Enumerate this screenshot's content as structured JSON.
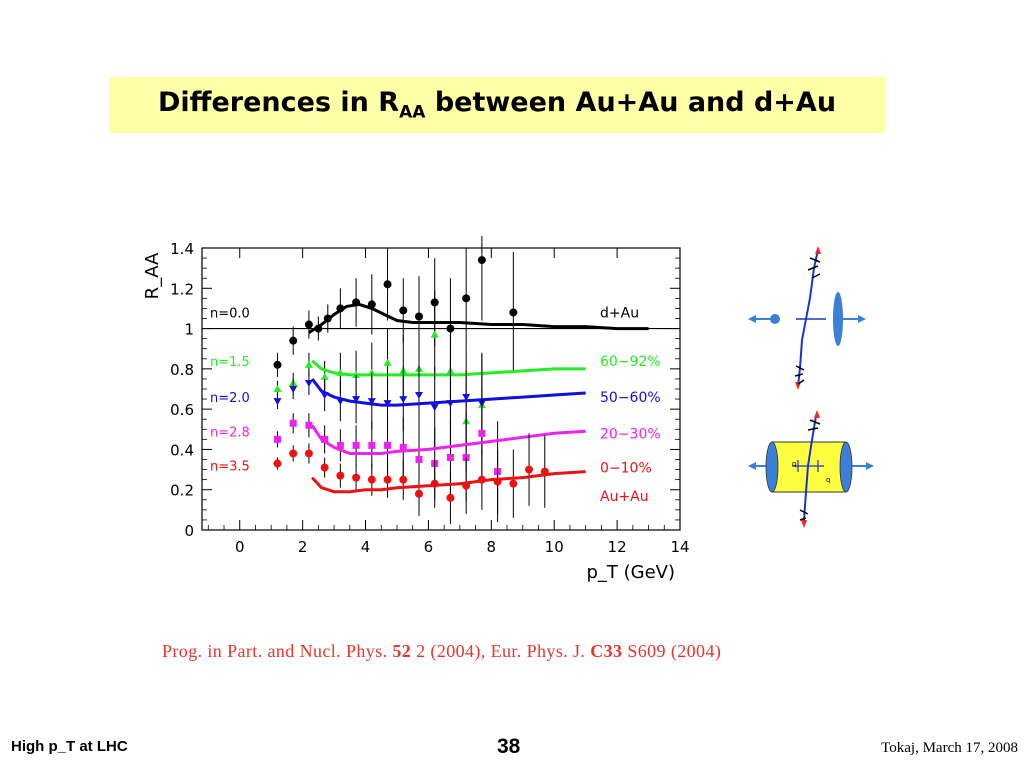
{
  "slide": {
    "title_main": "Differences in R",
    "title_sub": "AA",
    "title_rest": " between Au+Au and d+Au",
    "reference": {
      "part1": "Prog. in Part. and Nucl. Phys. ",
      "vol1": "52",
      "part2": " 2 (2004), Eur. Phys. J. ",
      "vol2": "C33",
      "part3": " S609 (2004)"
    },
    "footer_left": "High p_T at LHC",
    "page_number": "38",
    "footer_right": "Tokaj, March 17, 2008"
  },
  "colors": {
    "title_bg": "#ffffa8",
    "reference": "#e8342c",
    "dAu": "#000000",
    "c60_92": "#22ee22",
    "c50_60": "#1010e0",
    "c20_30": "#ee22ee",
    "c0_10": "#ee1111",
    "diagram_blue": "#3a7fd8",
    "diagram_yellow": "#ffff40"
  },
  "chart_data": {
    "type": "scatter",
    "xlabel": "p_T (GeV)",
    "ylabel": "R_AA",
    "xlim": [
      -1.2,
      14
    ],
    "ylim": [
      0,
      1.4
    ],
    "xticks": [
      0,
      2,
      4,
      6,
      8,
      10,
      12,
      14
    ],
    "yticks": [
      0,
      0.2,
      0.4,
      0.6,
      0.8,
      1,
      1.2,
      1.4
    ],
    "ytick_labels": [
      "0",
      "0.2",
      "0.4",
      "0.6",
      "0.8",
      "1",
      "1.2",
      "1.4"
    ],
    "reference_line": 1,
    "series": [
      {
        "name": "d+Au",
        "nlabel": "n=0.0",
        "color": "#000000",
        "marker": "circle",
        "x": [
          1.2,
          1.7,
          2.2,
          2.5,
          2.8,
          3.2,
          3.7,
          4.2,
          4.7,
          5.2,
          5.7,
          6.2,
          6.7,
          7.2,
          7.7,
          8.7
        ],
        "y": [
          0.82,
          0.94,
          1.02,
          1.0,
          1.05,
          1.1,
          1.13,
          1.12,
          1.22,
          1.09,
          1.06,
          1.13,
          1.0,
          1.15,
          1.34,
          1.08
        ],
        "err": [
          0.06,
          0.07,
          0.07,
          0.06,
          0.07,
          0.1,
          0.12,
          0.15,
          0.18,
          0.16,
          0.2,
          0.22,
          0.25,
          0.25,
          0.3,
          0.3
        ],
        "curve_x": [
          2.2,
          2.6,
          3.0,
          3.4,
          3.8,
          4.2,
          4.6,
          5.0,
          5.5,
          6.0,
          7.0,
          8.0,
          9.0,
          10.0,
          11.0,
          12.0,
          13.0
        ],
        "curve_y": [
          0.98,
          1.02,
          1.07,
          1.11,
          1.12,
          1.1,
          1.07,
          1.04,
          1.03,
          1.03,
          1.03,
          1.02,
          1.02,
          1.01,
          1.01,
          1.0,
          1.0
        ]
      },
      {
        "name": "60−92%",
        "nlabel": "n=1.5",
        "color": "#22ee22",
        "marker": "triangle-up",
        "x": [
          1.2,
          1.7,
          2.2,
          2.7,
          3.2,
          3.7,
          4.2,
          4.7,
          5.2,
          5.7,
          6.2,
          6.7,
          7.2,
          7.7
        ],
        "y": [
          0.7,
          0.73,
          0.82,
          0.76,
          0.78,
          0.77,
          0.78,
          0.83,
          0.79,
          0.8,
          0.97,
          0.79,
          0.54,
          0.62
        ],
        "err": [
          0.04,
          0.05,
          0.06,
          0.08,
          0.1,
          0.12,
          0.15,
          0.17,
          0.18,
          0.2,
          0.22,
          0.22,
          0.25,
          0.25
        ],
        "curve_x": [
          2.3,
          2.6,
          3.0,
          3.5,
          4.0,
          5.0,
          6.0,
          7.0,
          8.0,
          9.0,
          10.0,
          11.0
        ],
        "curve_y": [
          0.84,
          0.8,
          0.78,
          0.77,
          0.77,
          0.77,
          0.77,
          0.77,
          0.78,
          0.79,
          0.8,
          0.8
        ]
      },
      {
        "name": "50−60%",
        "nlabel": "n=2.0",
        "color": "#1010e0",
        "marker": "triangle-down",
        "x": [
          1.2,
          1.7,
          2.2,
          2.7,
          3.2,
          3.7,
          4.2,
          4.7,
          5.2,
          5.7,
          6.2,
          6.7,
          7.2,
          7.7
        ],
        "y": [
          0.64,
          0.7,
          0.73,
          0.67,
          0.64,
          0.65,
          0.64,
          0.63,
          0.65,
          0.67,
          0.61,
          0.63,
          0.66,
          0.63
        ],
        "err": [
          0.04,
          0.05,
          0.06,
          0.08,
          0.1,
          0.12,
          0.14,
          0.15,
          0.16,
          0.18,
          0.2,
          0.22,
          0.24,
          0.25
        ],
        "curve_x": [
          2.3,
          2.6,
          3.0,
          3.5,
          4.0,
          4.5,
          5.0,
          6.0,
          7.0,
          8.0,
          9.0,
          10.0,
          11.0
        ],
        "curve_y": [
          0.75,
          0.69,
          0.66,
          0.64,
          0.63,
          0.62,
          0.62,
          0.63,
          0.64,
          0.65,
          0.66,
          0.67,
          0.68
        ]
      },
      {
        "name": "20−30%",
        "nlabel": "n=2.8",
        "color": "#ee22ee",
        "marker": "square",
        "x": [
          1.2,
          1.7,
          2.2,
          2.7,
          3.2,
          3.7,
          4.2,
          4.7,
          5.2,
          5.7,
          6.2,
          6.7,
          7.2,
          7.7,
          8.2
        ],
        "y": [
          0.45,
          0.53,
          0.52,
          0.45,
          0.42,
          0.42,
          0.42,
          0.42,
          0.41,
          0.35,
          0.33,
          0.36,
          0.36,
          0.48,
          0.29
        ],
        "err": [
          0.04,
          0.05,
          0.06,
          0.07,
          0.08,
          0.1,
          0.12,
          0.14,
          0.15,
          0.16,
          0.18,
          0.2,
          0.22,
          0.23,
          0.25
        ],
        "curve_x": [
          2.3,
          2.6,
          3.0,
          3.5,
          4.0,
          4.5,
          5.0,
          6.0,
          7.0,
          8.0,
          9.0,
          10.0,
          11.0
        ],
        "curve_y": [
          0.52,
          0.45,
          0.41,
          0.38,
          0.38,
          0.38,
          0.39,
          0.4,
          0.42,
          0.44,
          0.46,
          0.48,
          0.49
        ]
      },
      {
        "name": "0−10%",
        "nlabel": "n=3.5",
        "color": "#ee1111",
        "marker": "circle",
        "x": [
          1.2,
          1.7,
          2.2,
          2.7,
          3.2,
          3.7,
          4.2,
          4.7,
          5.2,
          5.7,
          6.2,
          6.7,
          7.2,
          7.7,
          8.2,
          8.7,
          9.2,
          9.7
        ],
        "y": [
          0.33,
          0.38,
          0.38,
          0.31,
          0.27,
          0.26,
          0.25,
          0.25,
          0.25,
          0.18,
          0.23,
          0.16,
          0.22,
          0.25,
          0.24,
          0.23,
          0.3,
          0.29
        ],
        "err": [
          0.03,
          0.04,
          0.05,
          0.05,
          0.06,
          0.07,
          0.08,
          0.09,
          0.1,
          0.11,
          0.12,
          0.13,
          0.14,
          0.15,
          0.16,
          0.17,
          0.18,
          0.18
        ],
        "curve_x": [
          2.3,
          2.6,
          3.0,
          3.5,
          4.0,
          4.5,
          5.0,
          6.0,
          7.0,
          8.0,
          9.0,
          10.0,
          11.0
        ],
        "curve_y": [
          0.26,
          0.21,
          0.19,
          0.19,
          0.2,
          0.2,
          0.21,
          0.22,
          0.23,
          0.25,
          0.26,
          0.28,
          0.29
        ]
      }
    ],
    "annotations": {
      "dAu": "d+Au",
      "AuAu": "Au+Au",
      "n_values": [
        "n=0.0",
        "n=1.5",
        "n=2.0",
        "n=2.8",
        "n=3.5"
      ]
    }
  },
  "diagrams": {
    "top": "dAu-collision-schematic",
    "bottom": "AuAu-collision-schematic",
    "labels": [
      "q",
      "q"
    ]
  }
}
